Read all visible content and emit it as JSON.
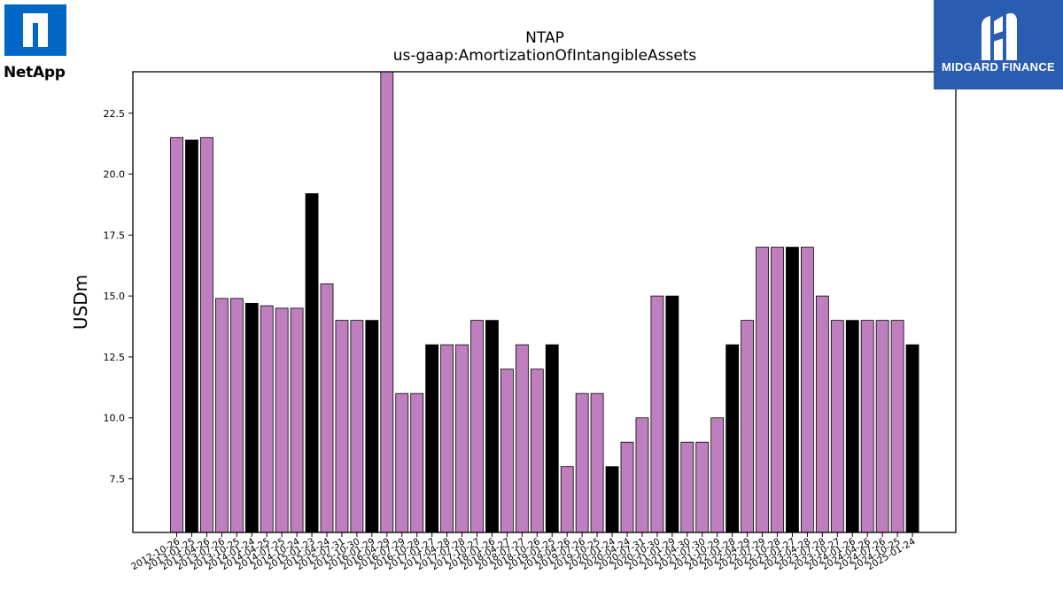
{
  "brand_left": {
    "text": "NetApp",
    "icon": "netapp-logo-icon"
  },
  "brand_right": {
    "text": "MIDGARD FINANCE",
    "icon": "midgard-logo-icon"
  },
  "chart_data": {
    "type": "bar",
    "title": "NTAP",
    "subtitle": "us-gaap:AmortizationOfIntangibleAssets",
    "ylabel": "USDm",
    "xlabel": "",
    "ylim": [
      5.3,
      24.2
    ],
    "yticks": [
      7.5,
      10.0,
      12.5,
      15.0,
      17.5,
      20.0,
      22.5
    ],
    "grid": false,
    "colors": {
      "quarter": "#bf7fbf",
      "annual": "#000000"
    },
    "categories": [
      "2012-10-26",
      "2013-01-25",
      "2013-04-26",
      "2013-07-26",
      "2013-10-25",
      "2014-01-24",
      "2014-04-25",
      "2014-07-25",
      "2014-10-24",
      "2015-01-23",
      "2015-04-24",
      "2015-07-31",
      "2015-10-30",
      "2016-01-29",
      "2016-04-29",
      "2016-07-29",
      "2016-10-28",
      "2017-01-27",
      "2017-04-28",
      "2017-07-28",
      "2017-10-27",
      "2018-01-26",
      "2018-04-27",
      "2018-07-27",
      "2018-10-26",
      "2019-01-25",
      "2019-04-26",
      "2019-07-26",
      "2019-10-25",
      "2020-01-24",
      "2020-04-24",
      "2020-07-31",
      "2020-10-30",
      "2021-01-29",
      "2021-04-30",
      "2021-07-30",
      "2021-10-29",
      "2022-01-28",
      "2022-04-29",
      "2022-07-29",
      "2022-10-28",
      "2023-01-27",
      "2023-04-28",
      "2023-07-28",
      "2023-10-27",
      "2024-01-26",
      "2024-04-26",
      "2024-07-26",
      "2024-10-25",
      "2025-01-24"
    ],
    "values": [
      21.5,
      21.4,
      21.5,
      14.9,
      14.9,
      14.7,
      14.6,
      14.5,
      14.5,
      19.2,
      15.5,
      14,
      14,
      14,
      24.2,
      11,
      11,
      13,
      13,
      13,
      14,
      14,
      12,
      13,
      12,
      13,
      8,
      11,
      11,
      8,
      9,
      10,
      15,
      15,
      9,
      9,
      10,
      13,
      14,
      17,
      17,
      17,
      17,
      15,
      14,
      14,
      14,
      14,
      14,
      13
    ],
    "annual": [
      false,
      true,
      false,
      false,
      false,
      true,
      false,
      false,
      false,
      true,
      false,
      false,
      false,
      true,
      false,
      false,
      false,
      true,
      false,
      false,
      false,
      true,
      false,
      false,
      false,
      true,
      false,
      false,
      false,
      true,
      false,
      false,
      false,
      true,
      false,
      false,
      false,
      true,
      false,
      false,
      false,
      true,
      false,
      false,
      false,
      true,
      false,
      false,
      false,
      true
    ]
  }
}
